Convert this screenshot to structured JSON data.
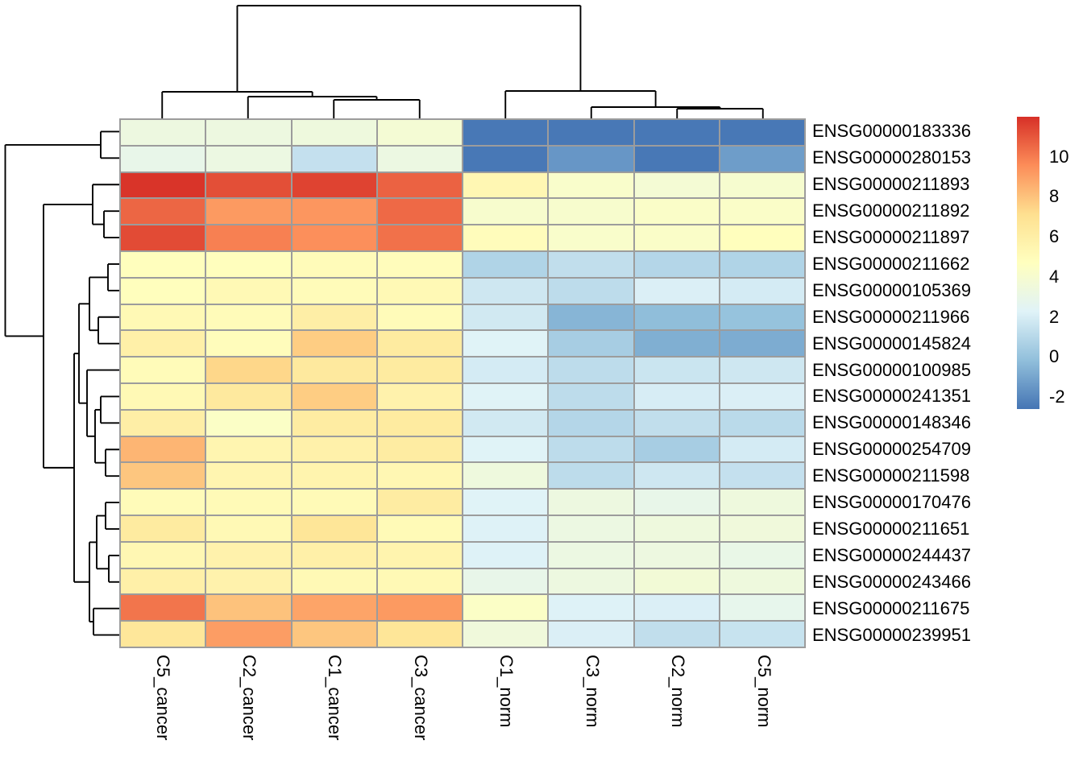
{
  "chart_data": {
    "type": "heatmap",
    "title": "",
    "columns": [
      "C5_cancer",
      "C2_cancer",
      "C1_cancer",
      "C3_cancer",
      "C1_norm",
      "C3_norm",
      "C2_norm",
      "C5_norm"
    ],
    "rows": [
      "ENSG00000183336",
      "ENSG00000280153",
      "ENSG00000211893",
      "ENSG00000211892",
      "ENSG00000211897",
      "ENSG00000211662",
      "ENSG00000105369",
      "ENSG00000211966",
      "ENSG00000145824",
      "ENSG00000100985",
      "ENSG00000241351",
      "ENSG00000148346",
      "ENSG00000254709",
      "ENSG00000211598",
      "ENSG00000170476",
      "ENSG00000211651",
      "ENSG00000244437",
      "ENSG00000243466",
      "ENSG00000211675",
      "ENSG00000239951"
    ],
    "values": [
      [
        3.3,
        3.3,
        3.4,
        3.8,
        -2.5,
        -2.5,
        -2.5,
        -2.5
      ],
      [
        2.9,
        3.2,
        1.4,
        3.2,
        -2.5,
        -1.5,
        -2.5,
        -1.3
      ],
      [
        11.9,
        11.2,
        11.5,
        10.7,
        5.3,
        4.2,
        3.8,
        4.0
      ],
      [
        10.6,
        9.2,
        9.3,
        10.5,
        4.1,
        4.1,
        4.3,
        4.3
      ],
      [
        11.3,
        9.9,
        9.5,
        10.3,
        4.9,
        4.2,
        4.3,
        4.8
      ],
      [
        4.8,
        4.8,
        5.0,
        4.9,
        0.8,
        1.3,
        0.9,
        0.8
      ],
      [
        4.8,
        5.2,
        5.0,
        5.2,
        1.7,
        1.2,
        2.1,
        1.9
      ],
      [
        5.2,
        5.0,
        6.0,
        5.0,
        1.8,
        -0.5,
        -0.2,
        0.0
      ],
      [
        5.9,
        4.9,
        7.7,
        6.3,
        2.3,
        0.5,
        -0.7,
        -0.8
      ],
      [
        5.0,
        7.4,
        6.4,
        6.3,
        1.9,
        1.2,
        1.6,
        1.7
      ],
      [
        5.2,
        6.4,
        7.7,
        5.7,
        2.3,
        1.2,
        2.0,
        2.1
      ],
      [
        6.0,
        4.4,
        6.2,
        6.3,
        1.8,
        0.9,
        1.3,
        1.1
      ],
      [
        8.4,
        5.5,
        5.8,
        6.2,
        2.3,
        1.2,
        0.5,
        1.9
      ],
      [
        7.9,
        5.5,
        5.6,
        5.3,
        3.4,
        1.2,
        1.7,
        1.4
      ],
      [
        5.0,
        5.1,
        5.1,
        6.2,
        2.3,
        3.3,
        2.9,
        3.4
      ],
      [
        6.3,
        5.2,
        6.7,
        5.1,
        2.2,
        3.2,
        3.4,
        3.5
      ],
      [
        5.3,
        5.7,
        5.9,
        5.6,
        2.2,
        3.2,
        3.3,
        3.0
      ],
      [
        5.9,
        5.7,
        5.2,
        5.2,
        2.9,
        3.3,
        3.7,
        3.4
      ],
      [
        10.2,
        8.0,
        8.9,
        9.2,
        4.4,
        2.2,
        2.1,
        2.8
      ],
      [
        6.6,
        9.1,
        7.9,
        6.7,
        3.5,
        2.1,
        1.3,
        1.5
      ]
    ],
    "color_scale": {
      "domain_min": -2.6,
      "domain_max": 12,
      "stops": [
        {
          "value": -2.6,
          "color": "#4575b4"
        },
        {
          "value": -0.167,
          "color": "#91bfdb"
        },
        {
          "value": 2.267,
          "color": "#e0f3f8"
        },
        {
          "value": 4.7,
          "color": "#ffffbf"
        },
        {
          "value": 7.133,
          "color": "#fee090"
        },
        {
          "value": 9.567,
          "color": "#fc8d59"
        },
        {
          "value": 12,
          "color": "#d73027"
        }
      ]
    },
    "legend_ticks": [
      {
        "label": "10",
        "value": 10
      },
      {
        "label": "8",
        "value": 8
      },
      {
        "label": "6",
        "value": 6
      },
      {
        "label": "4",
        "value": 4
      },
      {
        "label": "2",
        "value": 2
      },
      {
        "label": "0",
        "value": 0
      },
      {
        "label": "-2",
        "value": -2
      }
    ],
    "grid_line_color": "#9c9c9c",
    "dendrogram_color": "#000000",
    "col_dendrogram": [
      7,
      [
        114,
        0,
        [
          120,
          1,
          [
            124,
            2,
            3
          ]
        ]
      ],
      [
        113,
        4,
        [
          133,
          5,
          [
            135,
            6,
            7
          ]
        ]
      ]
    ],
    "row_dendrogram": [
      6.5,
      [
        125,
        0,
        1
      ],
      [
        54,
        [
          115,
          2,
          [
            129,
            3,
            4
          ]
        ],
        [
          92,
          [
            98,
            [
              111,
              [
                134,
                5,
                6
              ],
              [
                122,
                7,
                8
              ]
            ],
            [
              108,
              9,
              [
                118,
                [
                  125,
                  10,
                  11
                ],
                [
                  131,
                  12,
                  13
                ]
              ]
            ]
          ],
          [
            111,
            [
              120,
              [
                131,
                14,
                15
              ],
              [
                135,
                16,
                17
              ]
            ],
            [
              116,
              18,
              19
            ]
          ]
        ]
      ]
    ],
    "legend_position": "right",
    "row_labels_position": "right",
    "col_labels_rotation_deg": 90
  }
}
